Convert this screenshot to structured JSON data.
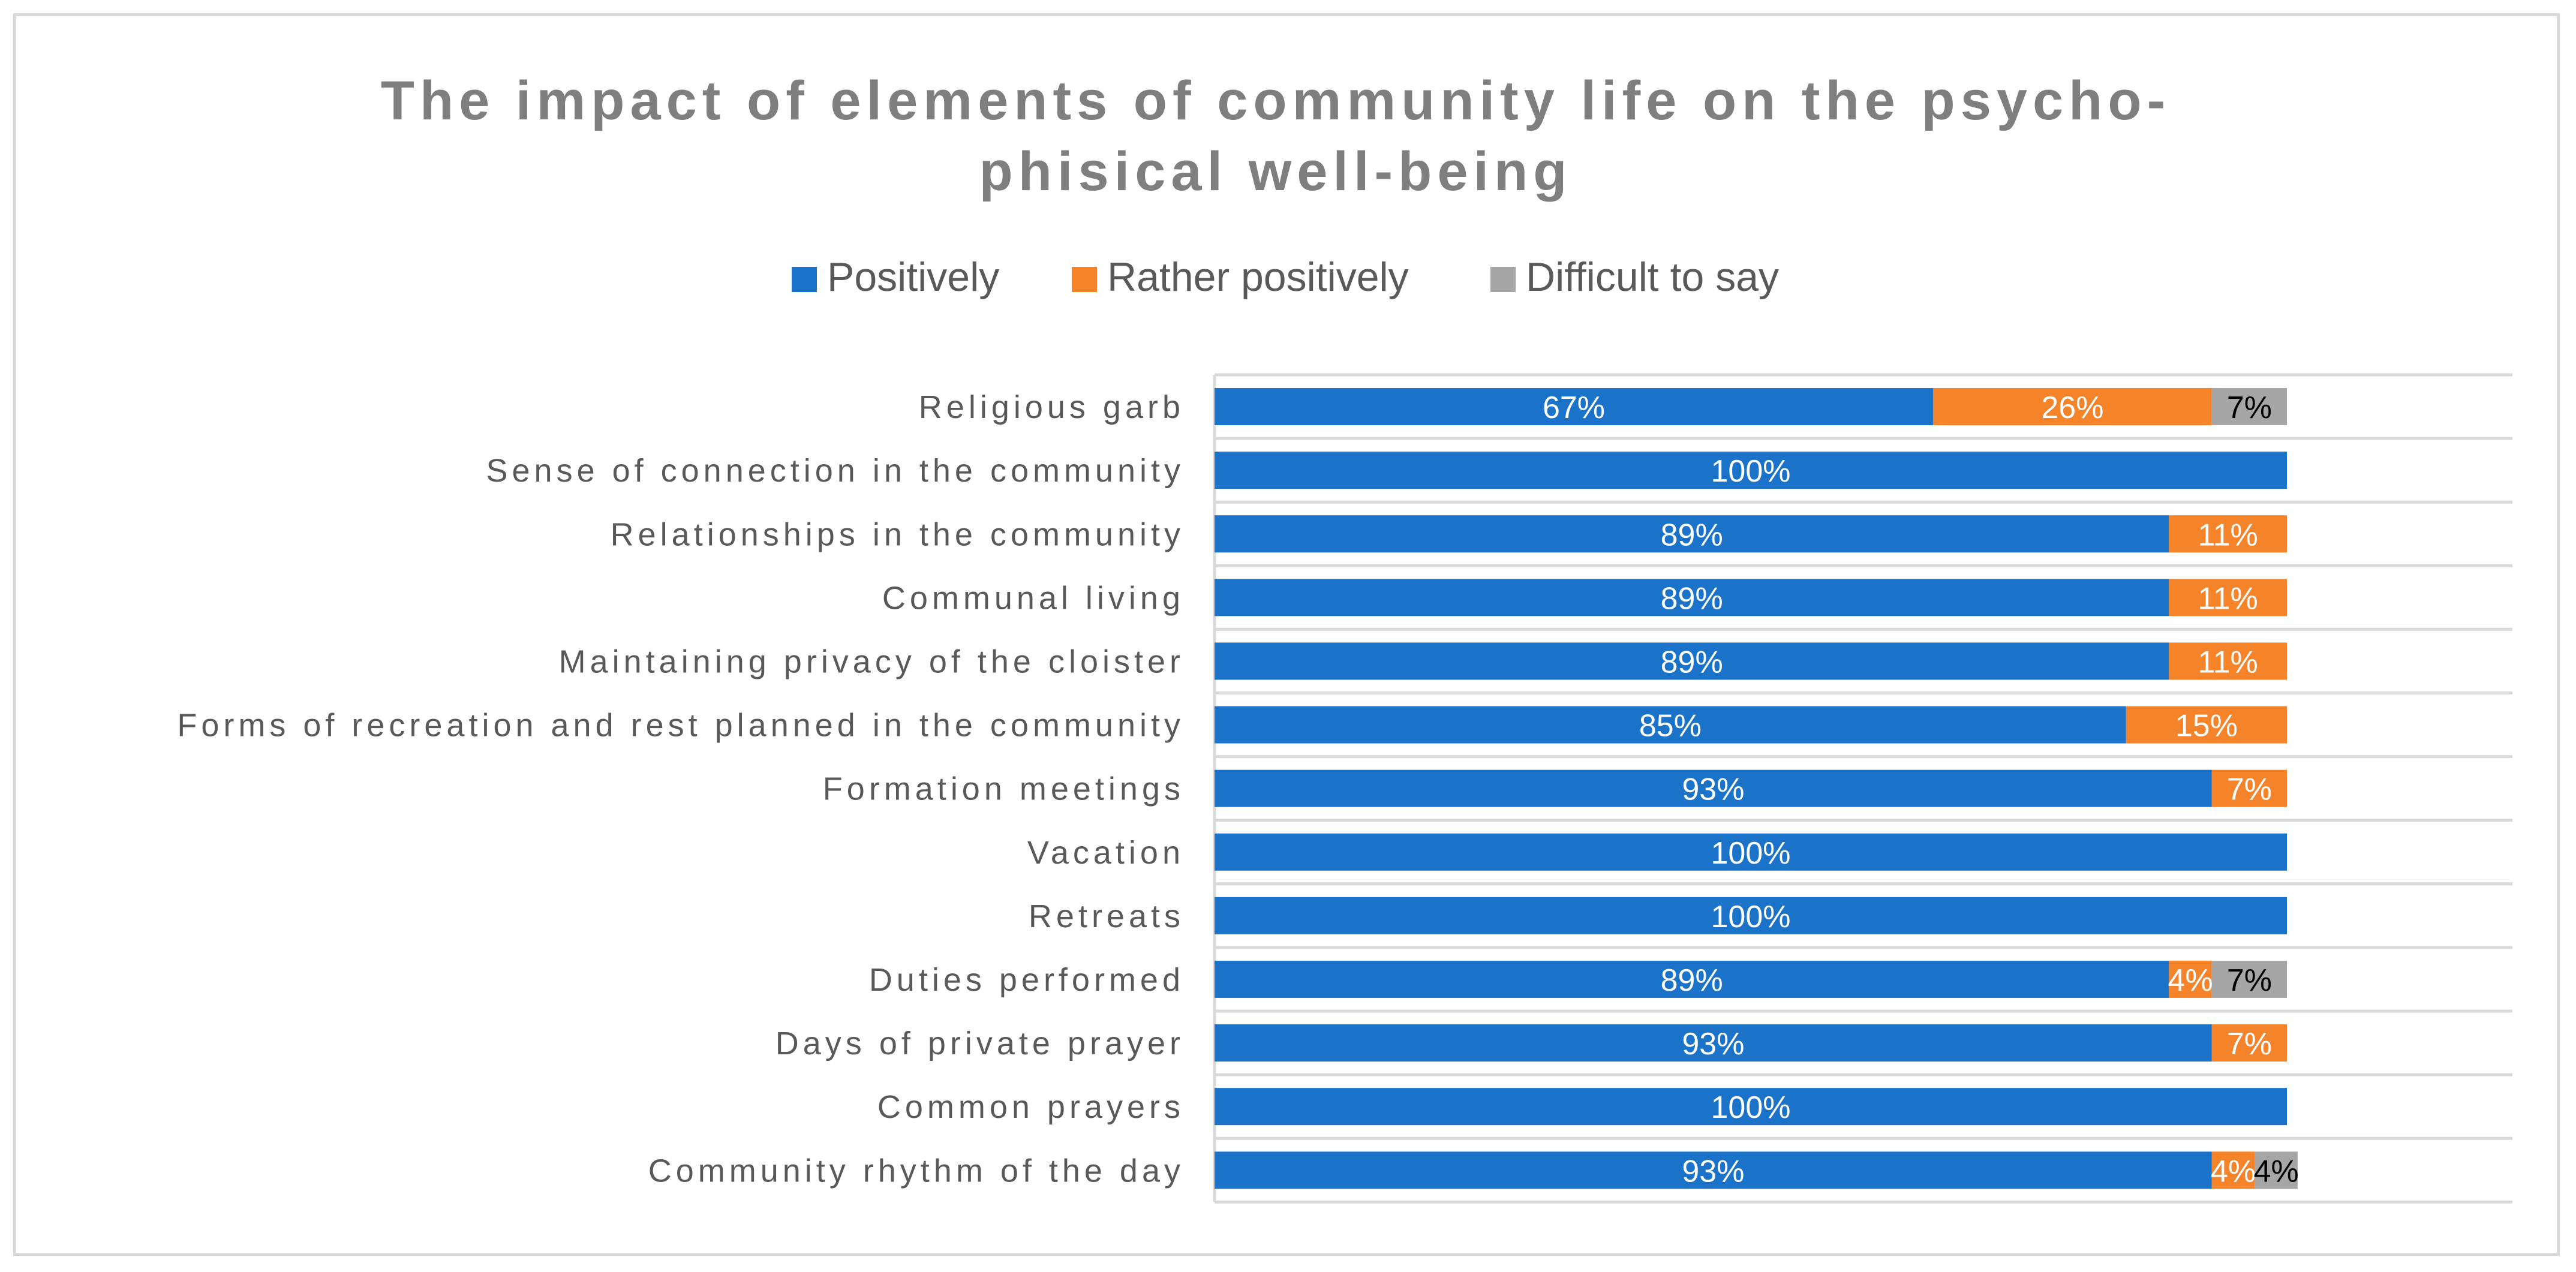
{
  "chart_data": {
    "type": "bar",
    "orientation": "horizontal",
    "stacked": true,
    "title": "The impact of elements of community life on the psycho-phisical well-being",
    "title_lines": [
      "The impact of elements of community life on the psycho-",
      "phisical well-being"
    ],
    "legend_position": "top",
    "xlim": [
      0,
      100
    ],
    "grid": true,
    "categories": [
      "Religious garb",
      "Sense of connection in the community",
      "Relationships in the community",
      "Communal living",
      "Maintaining privacy of the cloister",
      "Forms of recreation and rest planned in the community",
      "Formation meetings",
      "Vacation",
      "Retreats",
      "Duties performed",
      "Days of private prayer",
      "Common prayers",
      "Community rhythm of the day"
    ],
    "series": [
      {
        "name": "Positively",
        "color": "#1a73c8",
        "label_color": "#ffffff",
        "values": [
          67,
          100,
          89,
          89,
          89,
          85,
          93,
          100,
          100,
          89,
          93,
          100,
          93
        ]
      },
      {
        "name": "Rather positively",
        "color": "#f5832a",
        "label_color": "#ffffff",
        "values": [
          26,
          0,
          11,
          11,
          11,
          15,
          7,
          0,
          0,
          4,
          7,
          0,
          4
        ]
      },
      {
        "name": "Difficult to say",
        "color": "#a6a6a6",
        "label_color": "#000000",
        "values": [
          7,
          0,
          0,
          0,
          0,
          0,
          0,
          0,
          0,
          7,
          0,
          0,
          4
        ]
      }
    ],
    "value_suffix": "%"
  }
}
